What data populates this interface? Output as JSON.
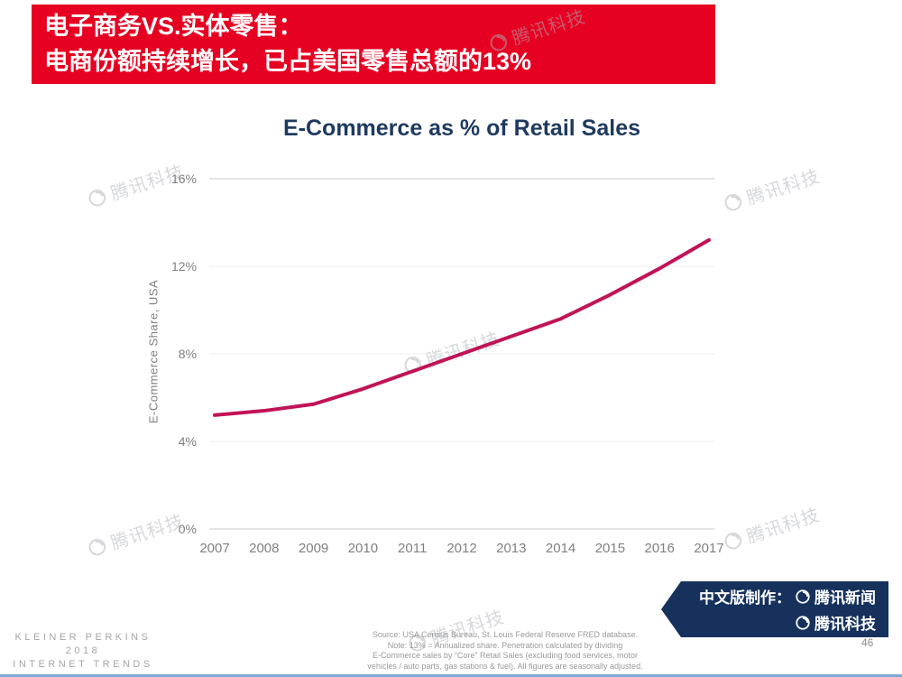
{
  "header": {
    "line1": "电子商务VS.实体零售：",
    "line2": "电商份额持续增长，已占美国零售总额的13%"
  },
  "chart_data": {
    "type": "line",
    "title": "E-Commerce as % of Retail Sales",
    "ylabel": "E-Commerce Share, USA",
    "x": [
      2007,
      2008,
      2009,
      2010,
      2011,
      2012,
      2013,
      2014,
      2015,
      2016,
      2017
    ],
    "values": [
      5.2,
      5.4,
      5.7,
      6.4,
      7.2,
      8.0,
      8.8,
      9.6,
      10.7,
      11.9,
      13.2
    ],
    "ylim": [
      0,
      16
    ],
    "yticks": [
      0,
      4,
      8,
      12,
      16
    ],
    "ytick_labels": [
      "0%",
      "4%",
      "8%",
      "12%",
      "16%"
    ],
    "line_color": "#c11358",
    "grid": true,
    "legend": "none"
  },
  "watermark": {
    "text": "腾讯科技"
  },
  "ribbon": {
    "prefix": "中文版制作：",
    "line1": "腾讯新闻",
    "line2": "腾讯科技"
  },
  "footer": {
    "brand_line1": "KLEINER PERKINS",
    "brand_line2": "2018",
    "brand_line3": "INTERNET TRENDS",
    "source_lines": [
      "Source: USA Census Bureau, St. Louis Federal Reserve FRED database.",
      "Note: 13% = Annualized share.  Penetration calculated by dividing",
      "E-Commerce sales by “Core” Retail Sales (excluding food services, motor",
      "vehicles / auto parts, gas stations & fuel). All figures are seasonally adjusted."
    ],
    "page_number": "46"
  },
  "colors": {
    "header_bg": "#e60021",
    "title_text": "#1f3a5f",
    "ribbon_bg": "#16325c",
    "line": "#c11358"
  }
}
